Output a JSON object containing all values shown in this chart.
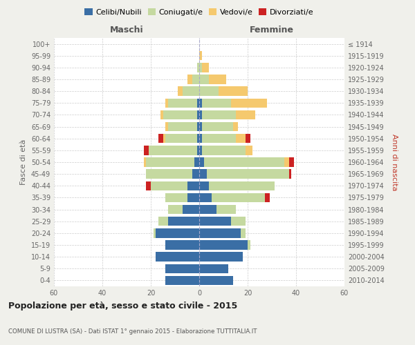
{
  "age_groups": [
    "0-4",
    "5-9",
    "10-14",
    "15-19",
    "20-24",
    "25-29",
    "30-34",
    "35-39",
    "40-44",
    "45-49",
    "50-54",
    "55-59",
    "60-64",
    "65-69",
    "70-74",
    "75-79",
    "80-84",
    "85-89",
    "90-94",
    "95-99",
    "100+"
  ],
  "birth_years": [
    "2010-2014",
    "2005-2009",
    "2000-2004",
    "1995-1999",
    "1990-1994",
    "1985-1989",
    "1980-1984",
    "1975-1979",
    "1970-1974",
    "1965-1969",
    "1960-1964",
    "1955-1959",
    "1950-1954",
    "1945-1949",
    "1940-1944",
    "1935-1939",
    "1930-1934",
    "1925-1929",
    "1920-1924",
    "1915-1919",
    "≤ 1914"
  ],
  "male": {
    "celibi": [
      14,
      14,
      18,
      14,
      18,
      13,
      7,
      5,
      5,
      3,
      2,
      1,
      1,
      1,
      1,
      1,
      0,
      0,
      0,
      0,
      0
    ],
    "coniugati": [
      0,
      0,
      0,
      0,
      1,
      4,
      6,
      9,
      15,
      19,
      20,
      20,
      13,
      12,
      14,
      12,
      7,
      3,
      1,
      0,
      0
    ],
    "vedovi": [
      0,
      0,
      0,
      0,
      0,
      0,
      0,
      0,
      0,
      0,
      1,
      0,
      1,
      1,
      1,
      1,
      2,
      2,
      0,
      0,
      0
    ],
    "divorziati": [
      0,
      0,
      0,
      0,
      0,
      0,
      0,
      0,
      2,
      0,
      0,
      2,
      2,
      0,
      0,
      0,
      0,
      0,
      0,
      0,
      0
    ]
  },
  "female": {
    "nubili": [
      14,
      12,
      18,
      20,
      17,
      13,
      7,
      5,
      4,
      3,
      2,
      1,
      1,
      1,
      1,
      1,
      0,
      0,
      0,
      0,
      0
    ],
    "coniugate": [
      0,
      0,
      0,
      1,
      2,
      6,
      8,
      22,
      27,
      34,
      33,
      18,
      14,
      13,
      14,
      12,
      8,
      4,
      1,
      0,
      0
    ],
    "vedove": [
      0,
      0,
      0,
      0,
      0,
      0,
      0,
      0,
      0,
      0,
      2,
      3,
      4,
      2,
      8,
      15,
      12,
      7,
      3,
      1,
      0
    ],
    "divorziate": [
      0,
      0,
      0,
      0,
      0,
      0,
      0,
      2,
      0,
      1,
      2,
      0,
      2,
      0,
      0,
      0,
      0,
      0,
      0,
      0,
      0
    ]
  },
  "colors": {
    "celibi": "#3a6ea5",
    "coniugati": "#c5d9a0",
    "vedovi": "#f5c96e",
    "divorziati": "#cc2222"
  },
  "xlim": 60,
  "title": "Popolazione per età, sesso e stato civile - 2015",
  "subtitle": "COMUNE DI LUSTRA (SA) - Dati ISTAT 1° gennaio 2015 - Elaborazione TUTTITALIA.IT",
  "ylabel_left": "Fasce di età",
  "ylabel_right": "Anni di nascita",
  "xlabel_maschi": "Maschi",
  "xlabel_femmine": "Femmine",
  "legend_labels": [
    "Celibi/Nubili",
    "Coniugati/e",
    "Vedovi/e",
    "Divorziati/e"
  ],
  "bg_color": "#f0f0eb",
  "plot_bg_color": "#ffffff"
}
